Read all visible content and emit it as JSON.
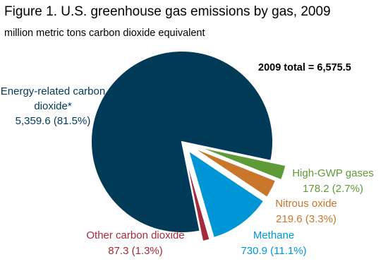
{
  "chart_data": {
    "type": "pie",
    "title": "Figure 1. U.S. greenhouse gas emissions by gas, 2009",
    "subtitle": "million metric tons carbon dioxide equivalent",
    "annotation": "2009 total = 6,575.5",
    "categories": [
      "Energy-related carbon dioxide*",
      "High-GWP gases",
      "Nitrous oxide",
      "Methane",
      "Other carbon dioxide"
    ],
    "values": [
      5359.6,
      178.2,
      219.6,
      730.9,
      87.3
    ],
    "value_labels": [
      "5,359.6 (81.5%)",
      "178.2 (2.7%)",
      "219.6 (3.3%)",
      "730.9 (11.1%)",
      "87.3 (1.3%)"
    ],
    "colors": [
      "#003a57",
      "#5e9a35",
      "#c9752a",
      "#0096d6",
      "#a52a3a"
    ]
  }
}
